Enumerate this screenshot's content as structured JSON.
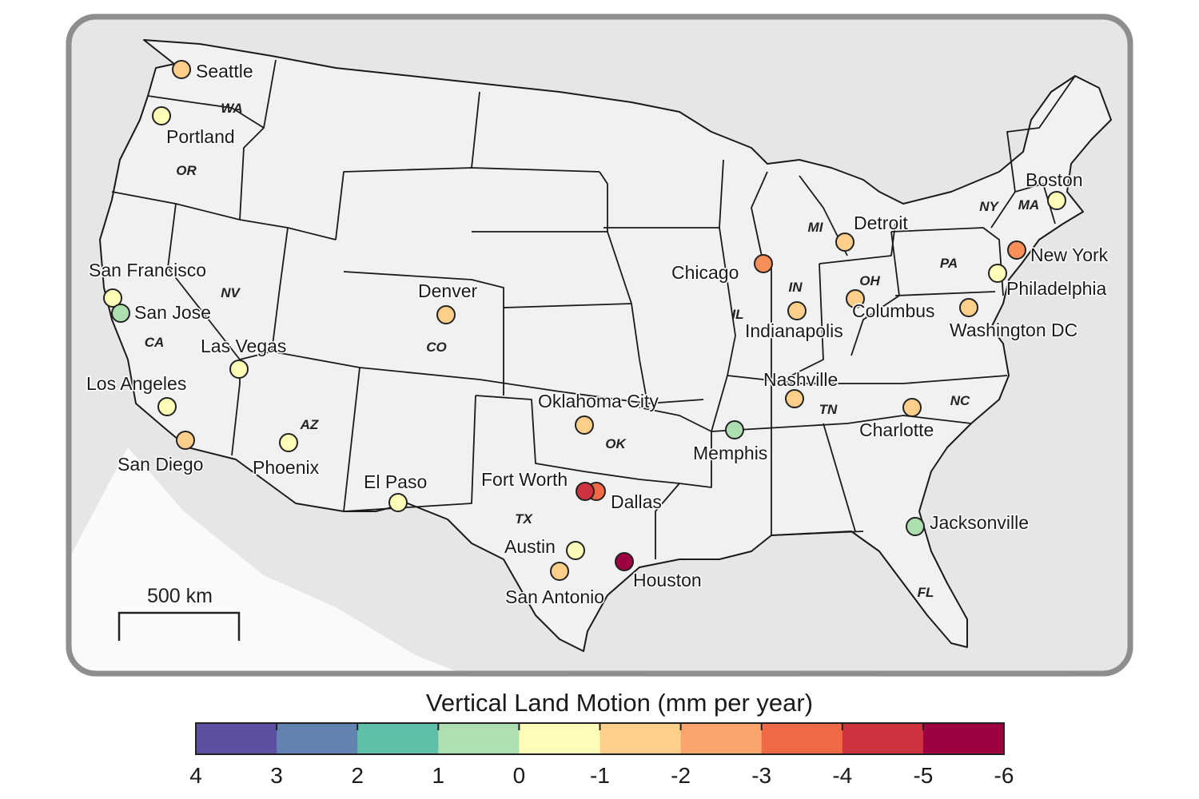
{
  "colorbar": {
    "title": "Vertical Land Motion (mm per year)",
    "ticks": [
      "4",
      "3",
      "2",
      "1",
      "0",
      "-1",
      "-2",
      "-3",
      "-4",
      "-5",
      "-6"
    ],
    "colors": [
      "#5e4fa2",
      "#6283b0",
      "#5fbfa8",
      "#aedfb0",
      "#fdfdb8",
      "#fdcf8a",
      "#f9a56b",
      "#f26a45",
      "#cd343f",
      "#9e0142"
    ]
  },
  "scale_bar": {
    "label": "500 km"
  },
  "states": [
    "WA",
    "OR",
    "CA",
    "NV",
    "AZ",
    "CO",
    "TX",
    "OK",
    "IL",
    "IN",
    "OH",
    "MI",
    "TN",
    "NC",
    "FL",
    "PA",
    "NY",
    "MA"
  ],
  "cities": [
    {
      "name": "Seattle",
      "value": -1.5,
      "color": "#fdcf8a"
    },
    {
      "name": "Portland",
      "value": -0.5,
      "color": "#fdfdb8"
    },
    {
      "name": "San Francisco",
      "value": -0.5,
      "color": "#fdfdb8"
    },
    {
      "name": "San Jose",
      "value": 0.5,
      "color": "#aedfb0"
    },
    {
      "name": "Las Vegas",
      "value": -0.5,
      "color": "#fdfdb8"
    },
    {
      "name": "Los Angeles",
      "value": -0.5,
      "color": "#fdfdb8"
    },
    {
      "name": "San Diego",
      "value": -1.5,
      "color": "#fdcf8a"
    },
    {
      "name": "Phoenix",
      "value": -0.5,
      "color": "#fdfdb8"
    },
    {
      "name": "Denver",
      "value": -1.5,
      "color": "#fdcf8a"
    },
    {
      "name": "El Paso",
      "value": -0.5,
      "color": "#fdfdb8"
    },
    {
      "name": "Fort Worth",
      "value": -4.5,
      "color": "#cd343f"
    },
    {
      "name": "Dallas",
      "value": -3.5,
      "color": "#f26a45"
    },
    {
      "name": "Oklahoma City",
      "value": -1.5,
      "color": "#fdcf8a"
    },
    {
      "name": "Austin",
      "value": -0.5,
      "color": "#fdfdb8"
    },
    {
      "name": "San Antonio",
      "value": -1.5,
      "color": "#fdcf8a"
    },
    {
      "name": "Houston",
      "value": -5.5,
      "color": "#9e0142"
    },
    {
      "name": "Memphis",
      "value": 0.5,
      "color": "#aedfb0"
    },
    {
      "name": "Nashville",
      "value": -1.5,
      "color": "#fdcf8a"
    },
    {
      "name": "Chicago",
      "value": -2.5,
      "color": "#f98e5a"
    },
    {
      "name": "Indianapolis",
      "value": -1.5,
      "color": "#fdcf8a"
    },
    {
      "name": "Columbus",
      "value": -1.5,
      "color": "#fdcf8a"
    },
    {
      "name": "Detroit",
      "value": -1.5,
      "color": "#fdcf8a"
    },
    {
      "name": "Charlotte",
      "value": -1.5,
      "color": "#fdcf8a"
    },
    {
      "name": "Jacksonville",
      "value": 0.5,
      "color": "#aedfb0"
    },
    {
      "name": "Washington DC",
      "value": -1.5,
      "color": "#fdcf8a"
    },
    {
      "name": "Philadelphia",
      "value": -0.5,
      "color": "#fdfdb8"
    },
    {
      "name": "New York",
      "value": -2.5,
      "color": "#f98e5a"
    },
    {
      "name": "Boston",
      "value": -0.5,
      "color": "#fdfdb8"
    }
  ]
}
